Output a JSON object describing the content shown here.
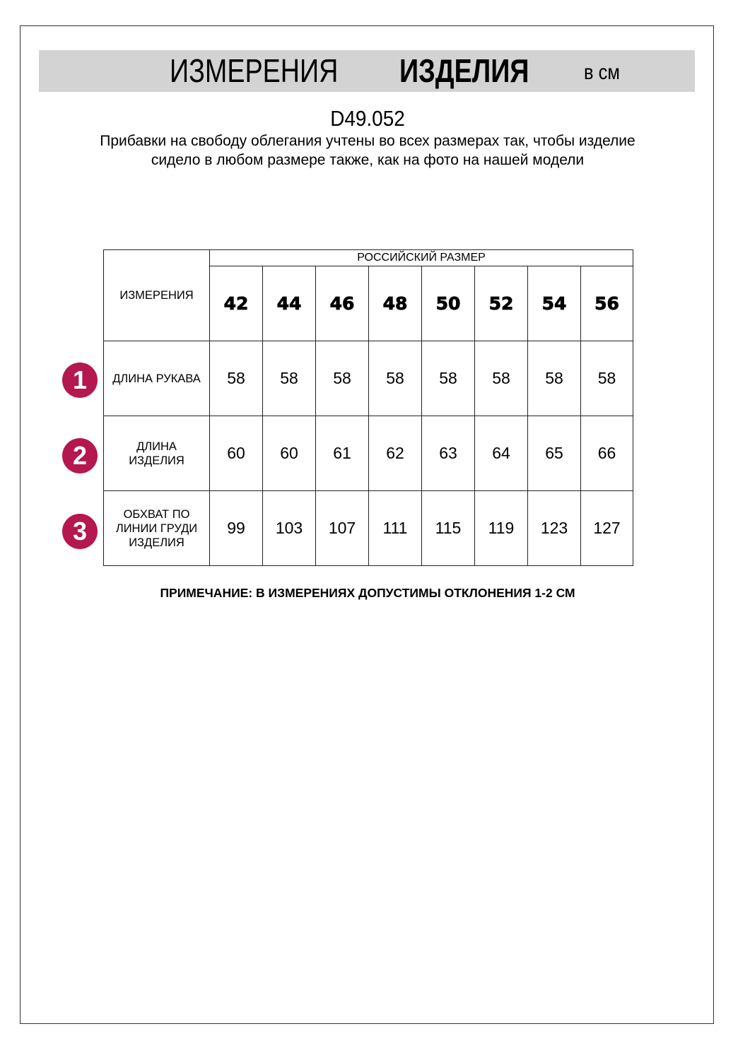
{
  "header": {
    "title_regular": "ИЗМЕРЕНИЯ",
    "title_bold": "ИЗДЕЛИЯ",
    "unit": "в см"
  },
  "product_code": "D49.052",
  "description": "Прибавки на свободу облегания учтены во всех размерах так, чтобы изделие сидело в любом размере также, как на фото на нашей модели",
  "table": {
    "corner_label": "ИЗМЕРЕНИЯ",
    "size_group_label": "РОССИЙСКИЙ РАЗМЕР",
    "sizes": [
      "42",
      "44",
      "46",
      "48",
      "50",
      "52",
      "54",
      "56"
    ],
    "rows": [
      {
        "number": "1",
        "label": "ДЛИНА РУКАВА",
        "values": [
          "58",
          "58",
          "58",
          "58",
          "58",
          "58",
          "58",
          "58"
        ]
      },
      {
        "number": "2",
        "label": "ДЛИНА ИЗДЕЛИЯ",
        "values": [
          "60",
          "60",
          "61",
          "62",
          "63",
          "64",
          "65",
          "66"
        ]
      },
      {
        "number": "3",
        "label": "ОБХВАТ ПО ЛИНИИ ГРУДИ ИЗДЕЛИЯ",
        "values": [
          "99",
          "103",
          "107",
          "111",
          "115",
          "119",
          "123",
          "127"
        ]
      }
    ]
  },
  "note": "ПРИМЕЧАНИЕ: В ИЗМЕРЕНИЯХ ДОПУСТИМЫ ОТКЛОНЕНИЯ 1-2 СМ",
  "colors": {
    "badge": "#b5174f",
    "band": "#d3d3d3"
  }
}
